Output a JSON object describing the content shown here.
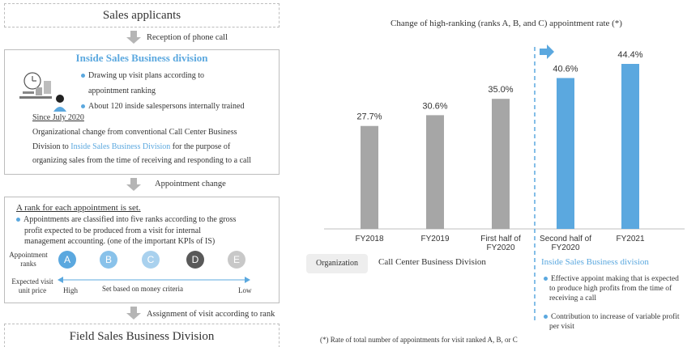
{
  "flow": {
    "top_title": "Sales applicants",
    "arrow1_label": "Reception of phone call",
    "isbd": {
      "title": "Inside Sales Business division",
      "bullet1_line1": "Drawing up visit plans according to",
      "bullet1_line2": "appointment ranking",
      "bullet2": "About 120 inside salespersons internally trained",
      "since": "Since July 2020",
      "desc_line1": "Organizational change from conventional Call Center Business",
      "desc_line2_pre": "Division to ",
      "desc_line2_link": "Inside Sales Business Division",
      "desc_line2_post": " for the purpose of",
      "desc_line3": "organizing sales from the time of receiving and responding to a call"
    },
    "arrow2_label": "Appointment change",
    "rank": {
      "title": "A rank for each appointment is set.",
      "bullet_line1": "Appointments are classified into five ranks according to the gross",
      "bullet_line2": "profit expected to be produced from a visit for internal",
      "bullet_line3": "management accounting. (one of the important KPIs of IS)",
      "label_line1": "Appointment",
      "label_line2": "ranks",
      "ranks": [
        {
          "letter": "A",
          "color": "#5ba8df"
        },
        {
          "letter": "B",
          "color": "#89c2ea"
        },
        {
          "letter": "C",
          "color": "#a9d1ee"
        },
        {
          "letter": "D",
          "color": "#595959"
        },
        {
          "letter": "E",
          "color": "#c8c8c8"
        }
      ],
      "price_line1": "Expected visit",
      "price_line2": "unit price",
      "high": "High",
      "criteria": "Set based on money criteria",
      "low": "Low"
    },
    "arrow3_label": "Assignment of visit according to rank",
    "bottom_title": "Field Sales Business Division"
  },
  "chart": {
    "title": "Change of high-ranking (ranks A, B, and C) appointment rate (*)",
    "org_label": "Organization",
    "group_left": "Call Center Business Division",
    "group_right": "Inside Sales Business division",
    "right_bullet1_line1": "Effective appoint making that is expected",
    "right_bullet1_line2": "to produce high profits from the time of",
    "right_bullet1_line3": "receiving a call",
    "right_bullet2_line1": "Contribution to increase of variable profit",
    "right_bullet2_line2": "per visit",
    "footnote": "(*) Rate of total number of appointments for visit ranked A, B, or C"
  },
  "chart_data": {
    "type": "bar",
    "title": "Change of high-ranking (ranks A, B, and C) appointment rate (*)",
    "categories": [
      "FY2018",
      "FY2019",
      "First half of FY2020",
      "Second half of FY2020",
      "FY2021"
    ],
    "category_lines": [
      [
        "FY2018"
      ],
      [
        "FY2019"
      ],
      [
        "First half of",
        "FY2020"
      ],
      [
        "Second half of",
        "FY2020"
      ],
      [
        "FY2021"
      ]
    ],
    "values": [
      27.7,
      30.6,
      35.0,
      40.6,
      44.4
    ],
    "value_labels": [
      "27.7%",
      "30.6%",
      "35.0%",
      "40.6%",
      "44.4%"
    ],
    "bar_colors": [
      "#a6a6a6",
      "#a6a6a6",
      "#a6a6a6",
      "#5ba8df",
      "#5ba8df"
    ],
    "xlabel": "",
    "ylabel": "",
    "ylim": [
      0,
      44.4
    ],
    "grid": false
  }
}
